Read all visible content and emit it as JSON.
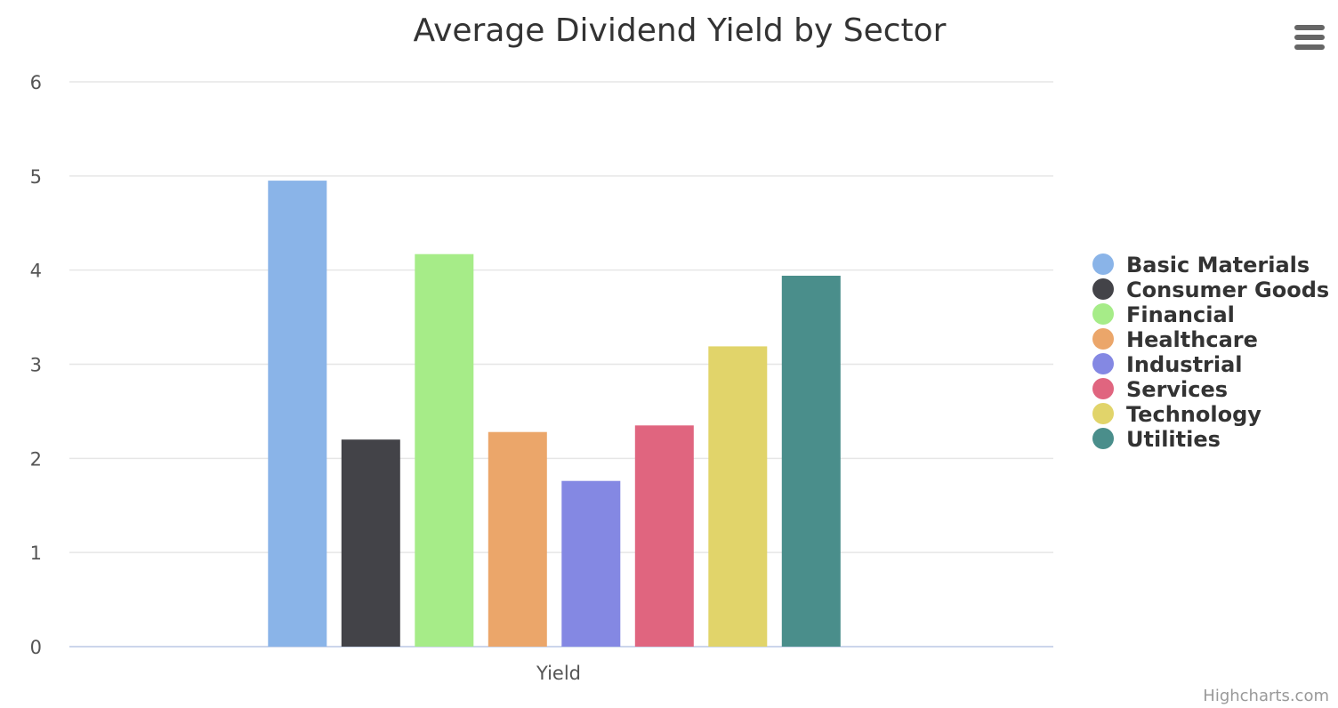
{
  "chart_data": {
    "type": "bar",
    "title": "Average Dividend Yield by Sector",
    "categories": [
      "Yield"
    ],
    "series": [
      {
        "name": "Basic Materials",
        "values": [
          4.95
        ],
        "color": "#8ab4e8"
      },
      {
        "name": "Consumer Goods",
        "values": [
          2.2
        ],
        "color": "#434348"
      },
      {
        "name": "Financial",
        "values": [
          4.17
        ],
        "color": "#a6ec88"
      },
      {
        "name": "Healthcare",
        "values": [
          2.28
        ],
        "color": "#eba66a"
      },
      {
        "name": "Industrial",
        "values": [
          1.76
        ],
        "color": "#8488e3"
      },
      {
        "name": "Services",
        "values": [
          2.35
        ],
        "color": "#e0657f"
      },
      {
        "name": "Technology",
        "values": [
          3.19
        ],
        "color": "#e1d46a"
      },
      {
        "name": "Utilities",
        "values": [
          3.94
        ],
        "color": "#4a8e8b"
      }
    ],
    "ylim": [
      0,
      6
    ],
    "yticks": [
      "0",
      "1",
      "2",
      "3",
      "4",
      "5",
      "6"
    ],
    "xlabel": "",
    "ylabel": "",
    "grid": true,
    "legend_position": "right"
  },
  "credit": "Highcharts.com",
  "menu": {
    "icon": "hamburger-menu-icon"
  }
}
